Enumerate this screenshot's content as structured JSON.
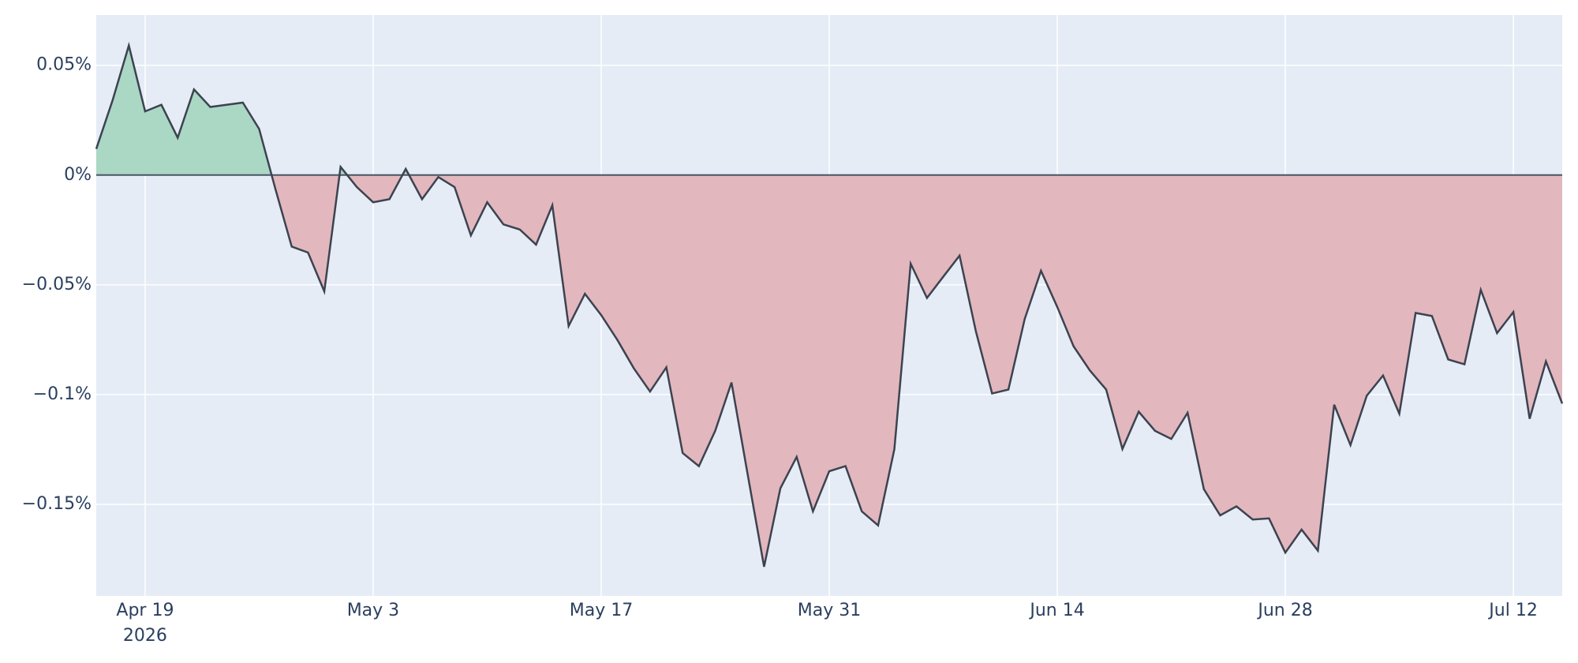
{
  "chart_data": {
    "type": "area",
    "x": [
      "2026-04-16",
      "2026-04-17",
      "2026-04-18",
      "2026-04-19",
      "2026-04-20",
      "2026-04-21",
      "2026-04-22",
      "2026-04-23",
      "2026-04-24",
      "2026-04-25",
      "2026-04-26",
      "2026-04-27",
      "2026-04-28",
      "2026-04-29",
      "2026-04-30",
      "2026-05-01",
      "2026-05-02",
      "2026-05-03",
      "2026-05-04",
      "2026-05-05",
      "2026-05-06",
      "2026-05-07",
      "2026-05-08",
      "2026-05-09",
      "2026-05-10",
      "2026-05-11",
      "2026-05-12",
      "2026-05-13",
      "2026-05-14",
      "2026-05-15",
      "2026-05-16",
      "2026-05-17",
      "2026-05-18",
      "2026-05-19",
      "2026-05-20",
      "2026-05-21",
      "2026-05-22",
      "2026-05-23",
      "2026-05-24",
      "2026-05-25",
      "2026-05-26",
      "2026-05-27",
      "2026-05-28",
      "2026-05-29",
      "2026-05-30",
      "2026-05-31",
      "2026-06-01",
      "2026-06-02",
      "2026-06-03",
      "2026-06-04",
      "2026-06-05",
      "2026-06-06",
      "2026-06-07",
      "2026-06-08",
      "2026-06-09",
      "2026-06-10",
      "2026-06-11",
      "2026-06-12",
      "2026-06-13",
      "2026-06-14",
      "2026-06-15",
      "2026-06-16",
      "2026-06-17",
      "2026-06-18",
      "2026-06-19",
      "2026-06-20",
      "2026-06-21",
      "2026-06-22",
      "2026-06-23",
      "2026-06-24",
      "2026-06-25",
      "2026-06-26",
      "2026-06-27",
      "2026-06-28",
      "2026-06-29",
      "2026-06-30",
      "2026-07-01",
      "2026-07-02",
      "2026-07-03",
      "2026-07-04",
      "2026-07-05",
      "2026-07-06",
      "2026-07-07",
      "2026-07-08",
      "2026-07-09",
      "2026-07-10",
      "2026-07-11",
      "2026-07-12",
      "2026-07-13",
      "2026-07-14",
      "2026-07-15"
    ],
    "series": [
      {
        "color": "#3c4350",
        "positive_color": "#abd7c5",
        "negative_color": "#e2b7be",
        "values": [
          0.0119,
          0.034,
          0.059,
          0.029,
          0.032,
          0.017,
          0.039,
          0.031,
          0.032,
          0.033,
          0.021,
          -0.0064,
          -0.0326,
          -0.0353,
          -0.053,
          0.0037,
          -0.0055,
          -0.0124,
          -0.011,
          0.0028,
          -0.011,
          -0.0009,
          -0.0055,
          -0.0275,
          -0.0124,
          -0.0225,
          -0.0248,
          -0.0317,
          -0.0138,
          -0.0688,
          -0.0541,
          -0.0638,
          -0.0752,
          -0.088,
          -0.0986,
          -0.0876,
          -0.1266,
          -0.1326,
          -0.1165,
          -0.0945,
          -0.1367,
          -0.1784,
          -0.1427,
          -0.1284,
          -0.1532,
          -0.1349,
          -0.1326,
          -0.1532,
          -0.1596,
          -0.1248,
          -0.0404,
          -0.056,
          -0.0463,
          -0.0367,
          -0.0711,
          -0.0995,
          -0.0977,
          -0.0656,
          -0.0436,
          -0.0601,
          -0.078,
          -0.089,
          -0.0977,
          -0.1248,
          -0.1078,
          -0.1165,
          -0.1202,
          -0.1083,
          -0.1431,
          -0.155,
          -0.1509,
          -0.1569,
          -0.1564,
          -0.172,
          -0.1615,
          -0.1711,
          -0.1046,
          -0.123,
          -0.1005,
          -0.0913,
          -0.1087,
          -0.0628,
          -0.0642,
          -0.084,
          -0.0862,
          -0.0523,
          -0.072,
          -0.0624,
          -0.111,
          -0.0849,
          -0.1041
        ]
      }
    ],
    "xlim": [
      "2026-04-16",
      "2026-07-15"
    ],
    "xticks": [
      {
        "value": "2026-04-19",
        "label": "Apr 19"
      },
      {
        "value": "2026-05-03",
        "label": "May 3"
      },
      {
        "value": "2026-05-17",
        "label": "May 17"
      },
      {
        "value": "2026-05-31",
        "label": "May 31"
      },
      {
        "value": "2026-06-14",
        "label": "Jun 14"
      },
      {
        "value": "2026-06-28",
        "label": "Jun 28"
      },
      {
        "value": "2026-07-12",
        "label": "Jul 12"
      }
    ],
    "xtick_sublabel": "2026",
    "ylim": [
      -0.1917,
      0.0729
    ],
    "yticks": [
      {
        "value": 0.05,
        "label": "0.05%"
      },
      {
        "value": 0,
        "label": "0%"
      },
      {
        "value": -0.05,
        "label": "−0.05%"
      },
      {
        "value": -0.1,
        "label": "−0.1%"
      },
      {
        "value": -0.15,
        "label": "−0.15%"
      }
    ],
    "grid": true
  }
}
